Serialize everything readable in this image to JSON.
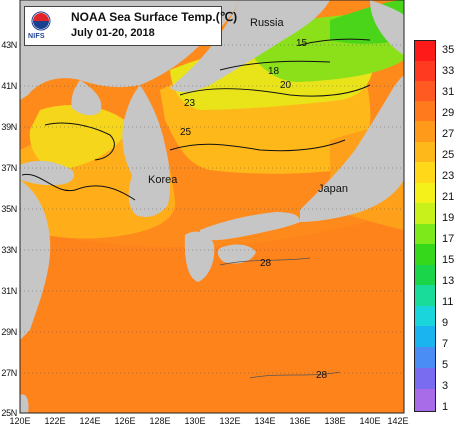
{
  "header": {
    "title": "NOAA Sea Surface Temp.(℃)",
    "period": "July 01-20, 2018",
    "logo_text": "NIFS"
  },
  "axes": {
    "lat_labels": [
      "43N",
      "41N",
      "39N",
      "37N",
      "35N",
      "33N",
      "31N",
      "29N",
      "27N",
      "25N"
    ],
    "lon_labels": [
      "120E",
      "122E",
      "124E",
      "126E",
      "128E",
      "130E",
      "132E",
      "134E",
      "136E",
      "138E",
      "140E",
      "142E"
    ],
    "lat_range": [
      25,
      45
    ],
    "lon_range": [
      120,
      142
    ]
  },
  "places": {
    "russia": "Russia",
    "korea": "Korea",
    "japan": "Japan"
  },
  "contour_labels": {
    "c15": "15",
    "c18": "18",
    "c20": "20",
    "c23_north": "23",
    "c25": "25",
    "c28_south": "28",
    "c28_north": "28"
  },
  "colorbar": {
    "labels": [
      "35",
      "33",
      "31",
      "29",
      "27",
      "25",
      "23",
      "21",
      "19",
      "17",
      "15",
      "13",
      "11",
      "9",
      "7",
      "5",
      "3",
      "1"
    ],
    "colors": [
      "#ff1a1a",
      "#ff3a20",
      "#ff5a22",
      "#ff7a1c",
      "#ff9a1a",
      "#ffb81a",
      "#ffd81a",
      "#f4f01a",
      "#c8f01a",
      "#7de81a",
      "#35d81a",
      "#1ad44a",
      "#1adc9a",
      "#1ad6dc",
      "#1ab4f0",
      "#4a8ef5",
      "#7a6cf0",
      "#a86ce8"
    ]
  },
  "colors": {
    "land": "#c6c6c6",
    "sea_warm": "#ff8a1c",
    "sea_mid": "#ffb01a",
    "sea_cool": "#f4e01a",
    "sea_cold": "#7de81a"
  }
}
